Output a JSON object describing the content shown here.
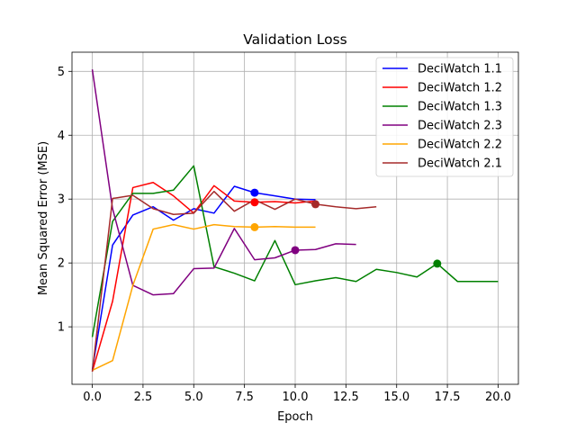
{
  "chart_data": {
    "type": "line",
    "title": "Validation Loss",
    "xlabel": "Epoch",
    "ylabel": "Mean Squared Error (MSE)",
    "xlim": [
      -1.0,
      21.0
    ],
    "ylim": [
      0.1,
      5.3
    ],
    "xticks": [
      0.0,
      2.5,
      5.0,
      7.5,
      10.0,
      12.5,
      15.0,
      17.5,
      20.0
    ],
    "xtick_labels": [
      "0.0",
      "2.5",
      "5.0",
      "7.5",
      "10.0",
      "12.5",
      "15.0",
      "17.5",
      "20.0"
    ],
    "yticks": [
      1,
      2,
      3,
      4,
      5
    ],
    "ytick_labels": [
      "1",
      "2",
      "3",
      "4",
      "5"
    ],
    "grid": true,
    "legend_position": "top-right",
    "series": [
      {
        "name": "DeciWatch 1.1",
        "color": "#0000ff",
        "x": [
          0,
          1,
          2,
          3,
          4,
          5,
          6,
          7,
          8,
          9,
          10,
          11
        ],
        "y": [
          0.33,
          2.28,
          2.75,
          2.88,
          2.67,
          2.85,
          2.78,
          3.2,
          3.1,
          3.05,
          3.0,
          2.99
        ],
        "marker": {
          "x": 8,
          "y": 3.1
        }
      },
      {
        "name": "DeciWatch 1.2",
        "color": "#ff0000",
        "x": [
          0,
          1,
          2,
          3,
          4,
          5,
          6,
          7,
          8,
          9,
          10,
          11
        ],
        "y": [
          0.3,
          1.4,
          3.18,
          3.26,
          3.05,
          2.78,
          3.21,
          2.97,
          2.95,
          2.96,
          2.94,
          2.97
        ],
        "marker": {
          "x": 8,
          "y": 2.95
        }
      },
      {
        "name": "DeciWatch 1.3",
        "color": "#008000",
        "x": [
          0,
          1,
          2,
          3,
          4,
          5,
          6,
          7,
          8,
          9,
          10,
          11,
          12,
          13,
          14,
          15,
          16,
          17,
          18,
          19,
          20
        ],
        "y": [
          0.84,
          2.65,
          3.09,
          3.09,
          3.14,
          3.52,
          1.94,
          1.84,
          1.72,
          2.35,
          1.66,
          1.72,
          1.77,
          1.71,
          1.9,
          1.85,
          1.78,
          1.99,
          1.71,
          1.71,
          1.71
        ],
        "marker": {
          "x": 17,
          "y": 1.99
        }
      },
      {
        "name": "DeciWatch 2.3",
        "color": "#800080",
        "x": [
          0,
          1,
          2,
          3,
          4,
          5,
          6,
          7,
          8,
          9,
          10,
          11,
          12,
          13
        ],
        "y": [
          5.03,
          2.85,
          1.65,
          1.5,
          1.52,
          1.91,
          1.92,
          2.54,
          2.05,
          2.08,
          2.2,
          2.21,
          2.3,
          2.29
        ],
        "marker": {
          "x": 10,
          "y": 2.2
        }
      },
      {
        "name": "DeciWatch 2.2",
        "color": "#ffa500",
        "x": [
          0,
          1,
          2,
          3,
          4,
          5,
          6,
          7,
          8,
          9,
          10,
          11
        ],
        "y": [
          0.32,
          0.47,
          1.65,
          2.53,
          2.6,
          2.53,
          2.6,
          2.57,
          2.56,
          2.57,
          2.56,
          2.56
        ],
        "marker": {
          "x": 8,
          "y": 2.56
        }
      },
      {
        "name": "DeciWatch 2.1",
        "color": "#a52a2a",
        "x": [
          0,
          1,
          2,
          3,
          4,
          5,
          6,
          7,
          8,
          9,
          10,
          11,
          12,
          13,
          14
        ],
        "y": [
          0.3,
          3.01,
          3.06,
          2.85,
          2.76,
          2.78,
          3.12,
          2.81,
          2.99,
          2.84,
          3.0,
          2.92,
          2.88,
          2.85,
          2.88
        ],
        "marker": {
          "x": 11,
          "y": 2.92
        }
      }
    ]
  }
}
